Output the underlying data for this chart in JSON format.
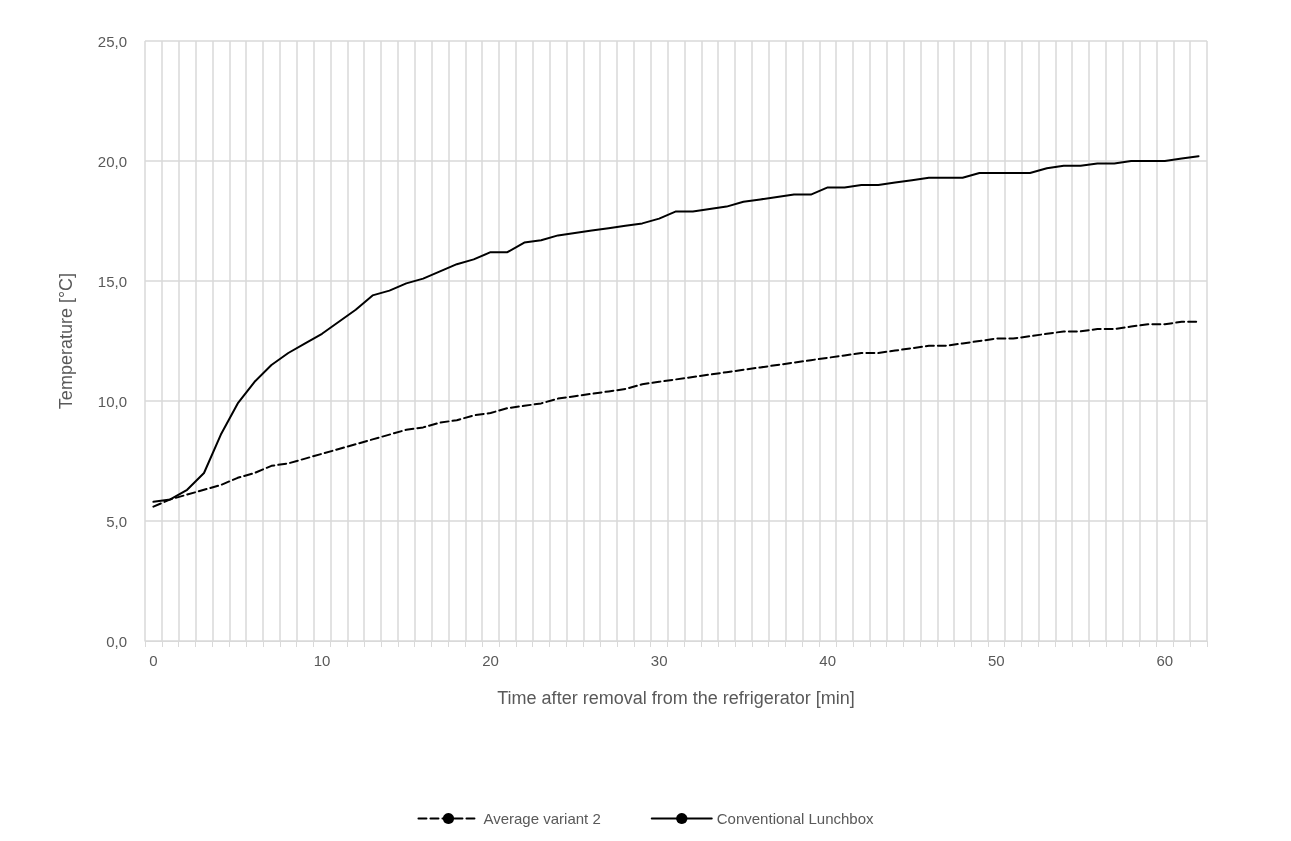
{
  "chart_data": {
    "type": "line",
    "xlabel": "Time after removal from the refrigerator [min]",
    "ylabel": "Temperature [°C]",
    "categories": [
      "0",
      null,
      null,
      null,
      null,
      null,
      null,
      null,
      null,
      null,
      "10",
      null,
      null,
      null,
      null,
      null,
      null,
      null,
      null,
      null,
      "20",
      null,
      null,
      null,
      null,
      null,
      null,
      null,
      null,
      null,
      "30",
      null,
      null,
      null,
      null,
      null,
      null,
      null,
      null,
      null,
      "40",
      null,
      null,
      null,
      null,
      null,
      null,
      null,
      null,
      null,
      "50",
      null,
      null,
      null,
      null,
      null,
      null,
      null,
      null,
      null,
      "60",
      null,
      null
    ],
    "series": [
      {
        "name": "Average variant 2",
        "color": "#000000",
        "line_style": "dashed",
        "values": [
          5.6,
          5.9,
          6.1,
          6.3,
          6.5,
          6.8,
          7.0,
          7.3,
          7.4,
          7.6,
          7.8,
          8.0,
          8.2,
          8.4,
          8.6,
          8.8,
          8.9,
          9.1,
          9.2,
          9.4,
          9.5,
          9.7,
          9.8,
          9.9,
          10.1,
          10.2,
          10.3,
          10.4,
          10.5,
          10.7,
          10.8,
          10.9,
          11.0,
          11.1,
          11.2,
          11.3,
          11.4,
          11.5,
          11.6,
          11.7,
          11.8,
          11.9,
          12.0,
          12.0,
          12.1,
          12.2,
          12.3,
          12.3,
          12.4,
          12.5,
          12.6,
          12.6,
          12.7,
          12.8,
          12.9,
          12.9,
          13.0,
          13.0,
          13.1,
          13.2,
          13.2,
          13.3,
          13.3
        ]
      },
      {
        "name": "Conventional Lunchbox",
        "color": "#000000",
        "line_style": "solid",
        "values": [
          5.8,
          5.9,
          6.3,
          7.0,
          8.6,
          9.9,
          10.8,
          11.5,
          12.0,
          12.4,
          12.8,
          13.3,
          13.8,
          14.4,
          14.6,
          14.9,
          15.1,
          15.4,
          15.7,
          15.9,
          16.2,
          16.2,
          16.6,
          16.7,
          16.9,
          17.0,
          17.1,
          17.2,
          17.3,
          17.4,
          17.6,
          17.9,
          17.9,
          18.0,
          18.1,
          18.3,
          18.4,
          18.5,
          18.6,
          18.6,
          18.9,
          18.9,
          19.0,
          19.0,
          19.1,
          19.2,
          19.3,
          19.3,
          19.3,
          19.5,
          19.5,
          19.5,
          19.5,
          19.7,
          19.8,
          19.8,
          19.9,
          19.9,
          20.0,
          20.0,
          20.0,
          20.1,
          20.2
        ]
      }
    ],
    "ylim": [
      0,
      25
    ],
    "yticks": [
      {
        "value": 0,
        "label": "0,0"
      },
      {
        "value": 5,
        "label": "5,0"
      },
      {
        "value": 10,
        "label": "10,0"
      },
      {
        "value": 15,
        "label": "15,0"
      },
      {
        "value": 20,
        "label": "20,0"
      },
      {
        "value": 25,
        "label": "25,0"
      }
    ],
    "grid": true,
    "legend": "bottom",
    "marker": "none"
  }
}
